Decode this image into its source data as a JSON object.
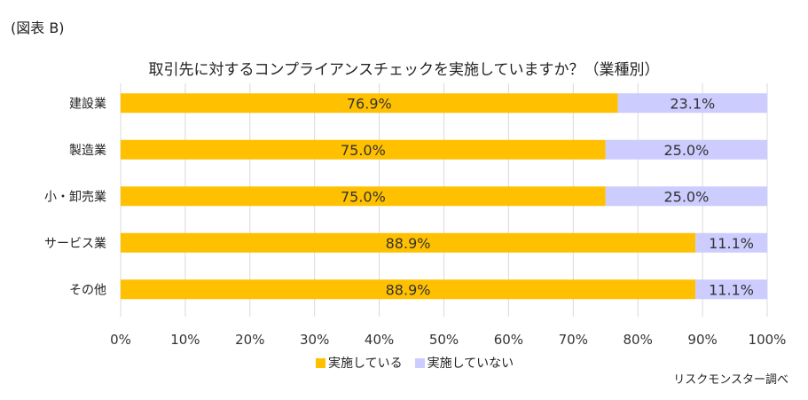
{
  "figure_label": "(図表 B)",
  "source_note": "リスクモンスター調べ",
  "chart_data": {
    "type": "bar",
    "orientation": "horizontal",
    "stacked": true,
    "percent_stacked": true,
    "title": "取引先に対するコンプライアンスチェックを実施していますか？（業種別）",
    "categories": [
      "建設業",
      "製造業",
      "小・卸売業",
      "サービス業",
      "その他"
    ],
    "series": [
      {
        "name": "実施している",
        "values": [
          76.9,
          75.0,
          75.0,
          88.9,
          88.9
        ],
        "labels": [
          "76.9%",
          "75.0%",
          "75.0%",
          "88.9%",
          "88.9%"
        ],
        "color": "#FFC000"
      },
      {
        "name": "実施していない",
        "values": [
          23.1,
          25.0,
          25.0,
          11.1,
          11.1
        ],
        "labels": [
          "23.1%",
          "25.0%",
          "25.0%",
          "11.1%",
          "11.1%"
        ],
        "color": "#CCCCFF"
      }
    ],
    "xlim": [
      0,
      100
    ],
    "x_ticks": [
      "0%",
      "10%",
      "20%",
      "30%",
      "40%",
      "50%",
      "60%",
      "70%",
      "80%",
      "90%",
      "100%"
    ],
    "grid": true,
    "gridline_color": "#D9D9D9",
    "legend_position": "bottom"
  }
}
